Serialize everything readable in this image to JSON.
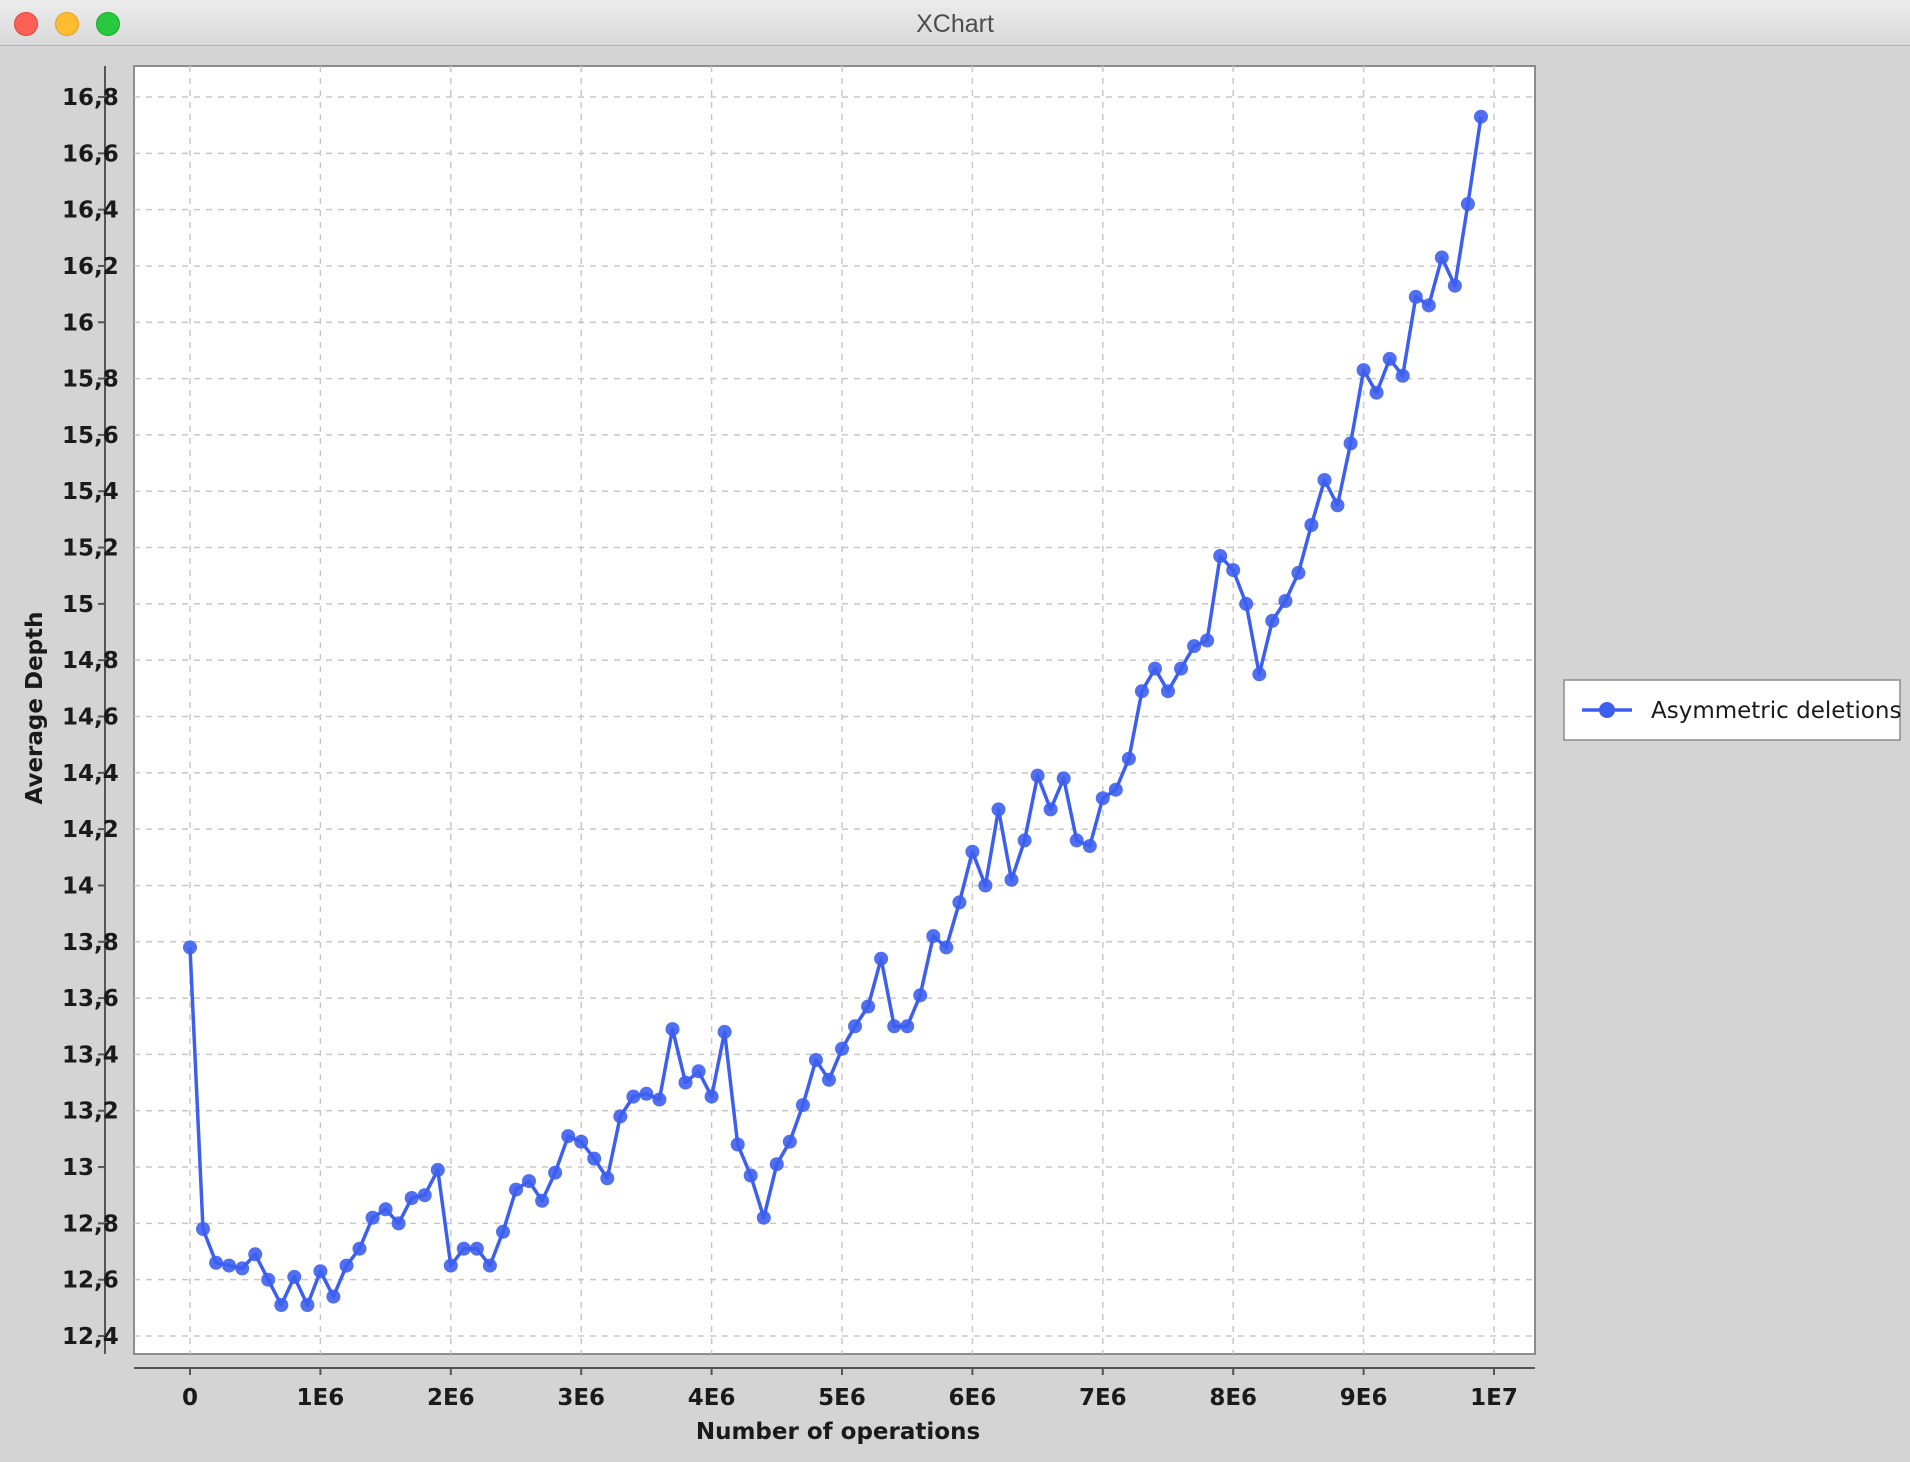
{
  "window": {
    "title": "XChart",
    "buttons": [
      "close",
      "minimize",
      "zoom"
    ]
  },
  "chart_data": {
    "type": "line",
    "title": "",
    "xlabel": "Number of operations",
    "ylabel": "Average Depth",
    "xlim": [
      0,
      10000000
    ],
    "ylim": [
      12.4,
      16.8
    ],
    "x_ticks": [
      {
        "value": 0,
        "label": "0"
      },
      {
        "value": 1000000,
        "label": "1E6"
      },
      {
        "value": 2000000,
        "label": "2E6"
      },
      {
        "value": 3000000,
        "label": "3E6"
      },
      {
        "value": 4000000,
        "label": "4E6"
      },
      {
        "value": 5000000,
        "label": "5E6"
      },
      {
        "value": 6000000,
        "label": "6E6"
      },
      {
        "value": 7000000,
        "label": "7E6"
      },
      {
        "value": 8000000,
        "label": "8E6"
      },
      {
        "value": 9000000,
        "label": "9E6"
      },
      {
        "value": 10000000,
        "label": "1E7"
      }
    ],
    "y_ticks": [
      {
        "value": 12.4,
        "label": "12,4"
      },
      {
        "value": 12.6,
        "label": "12,6"
      },
      {
        "value": 12.8,
        "label": "12,8"
      },
      {
        "value": 13.0,
        "label": "13"
      },
      {
        "value": 13.2,
        "label": "13,2"
      },
      {
        "value": 13.4,
        "label": "13,4"
      },
      {
        "value": 13.6,
        "label": "13,6"
      },
      {
        "value": 13.8,
        "label": "13,8"
      },
      {
        "value": 14.0,
        "label": "14"
      },
      {
        "value": 14.2,
        "label": "14,2"
      },
      {
        "value": 14.4,
        "label": "14,4"
      },
      {
        "value": 14.6,
        "label": "14,6"
      },
      {
        "value": 14.8,
        "label": "14,8"
      },
      {
        "value": 15.0,
        "label": "15"
      },
      {
        "value": 15.2,
        "label": "15,2"
      },
      {
        "value": 15.4,
        "label": "15,4"
      },
      {
        "value": 15.6,
        "label": "15,6"
      },
      {
        "value": 15.8,
        "label": "15,8"
      },
      {
        "value": 16.0,
        "label": "16"
      },
      {
        "value": 16.2,
        "label": "16,2"
      },
      {
        "value": 16.4,
        "label": "16,4"
      },
      {
        "value": 16.6,
        "label": "16,6"
      },
      {
        "value": 16.8,
        "label": "16,8"
      }
    ],
    "grid": true,
    "legend_position": "outside-right",
    "series": [
      {
        "name": "Asymmetric deletions",
        "color": "#3d5ff0",
        "marker": "circle",
        "x": [
          0,
          100000,
          200000,
          300000,
          400000,
          500000,
          600000,
          700000,
          800000,
          900000,
          1000000,
          1100000,
          1200000,
          1300000,
          1400000,
          1500000,
          1600000,
          1700000,
          1800000,
          1900000,
          2000000,
          2100000,
          2200000,
          2300000,
          2400000,
          2500000,
          2600000,
          2700000,
          2800000,
          2900000,
          3000000,
          3100000,
          3200000,
          3300000,
          3400000,
          3500000,
          3600000,
          3700000,
          3800000,
          3900000,
          4000000,
          4100000,
          4200000,
          4300000,
          4400000,
          4500000,
          4600000,
          4700000,
          4800000,
          4900000,
          5000000,
          5100000,
          5200000,
          5300000,
          5400000,
          5500000,
          5600000,
          5700000,
          5800000,
          5900000,
          6000000,
          6100000,
          6200000,
          6300000,
          6400000,
          6500000,
          6600000,
          6700000,
          6800000,
          6900000,
          7000000,
          7100000,
          7200000,
          7300000,
          7400000,
          7500000,
          7600000,
          7700000,
          7800000,
          7900000,
          8000000,
          8100000,
          8200000,
          8300000,
          8400000,
          8500000,
          8600000,
          8700000,
          8800000,
          8900000,
          9000000,
          9100000,
          9200000,
          9300000,
          9400000,
          9500000,
          9600000,
          9700000,
          9800000,
          9900000
        ],
        "y": [
          13.78,
          12.78,
          12.66,
          12.65,
          12.64,
          12.69,
          12.6,
          12.51,
          12.61,
          12.51,
          12.63,
          12.54,
          12.65,
          12.71,
          12.82,
          12.85,
          12.8,
          12.89,
          12.9,
          12.99,
          12.65,
          12.71,
          12.71,
          12.65,
          12.77,
          12.92,
          12.95,
          12.88,
          12.98,
          13.11,
          13.09,
          13.03,
          12.96,
          13.18,
          13.25,
          13.26,
          13.24,
          13.49,
          13.3,
          13.34,
          13.25,
          13.48,
          13.08,
          12.97,
          12.82,
          13.01,
          13.09,
          13.22,
          13.38,
          13.31,
          13.42,
          13.5,
          13.57,
          13.74,
          13.5,
          13.5,
          13.61,
          13.82,
          13.78,
          13.94,
          14.12,
          14.0,
          14.27,
          14.02,
          14.16,
          14.39,
          14.27,
          14.38,
          14.16,
          14.14,
          14.31,
          14.34,
          14.45,
          14.69,
          14.77,
          14.69,
          14.77,
          14.85,
          14.87,
          15.17,
          15.12,
          15.0,
          14.75,
          14.94,
          15.01,
          15.11,
          15.28,
          15.44,
          15.35,
          15.57,
          15.83,
          15.75,
          15.87,
          15.81,
          16.09,
          16.06,
          16.23,
          16.13,
          16.42,
          16.73
        ]
      }
    ]
  }
}
